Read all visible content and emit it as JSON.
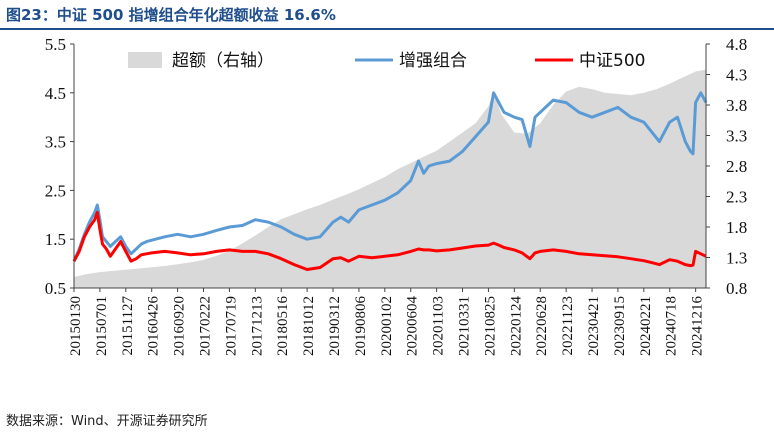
{
  "header": {
    "title": "图23：中证 500 指增组合年化超额收益 16.6%"
  },
  "footer": {
    "source": "数据来源：Wind、开源证券研究所"
  },
  "chart_data": {
    "type": "line",
    "title": "中证 500 指增组合年化超额收益 16.6%",
    "x_ticks": [
      "20150130",
      "20150701",
      "20151127",
      "20160426",
      "20160920",
      "20170222",
      "20170719",
      "20171213",
      "20180516",
      "20181012",
      "20190312",
      "20190806",
      "20200102",
      "20200604",
      "20201103",
      "20210331",
      "20210825",
      "20220124",
      "20220628",
      "20221123",
      "20230421",
      "20230915",
      "20240221",
      "20240718",
      "20241216"
    ],
    "y_left": {
      "ticks": [
        0.5,
        1.5,
        2.5,
        3.5,
        4.5,
        5.5
      ],
      "ylim": [
        0.5,
        5.5
      ]
    },
    "y_right": {
      "ticks": [
        0.8,
        1.3,
        1.8,
        2.3,
        2.8,
        3.3,
        3.8,
        4.3,
        4.8
      ],
      "ylim": [
        0.8,
        4.8
      ]
    },
    "legend": {
      "position": "top",
      "entries": [
        "超额（右轴）",
        "增强组合",
        "中证500"
      ]
    },
    "series": [
      {
        "name": "超额（右轴）",
        "type": "area",
        "axis": "right",
        "color": "#d9d9d9",
        "x": [
          0,
          0.5,
          1,
          1.5,
          2,
          2.5,
          3,
          3.5,
          4,
          4.5,
          5,
          5.5,
          6,
          6.5,
          7,
          7.5,
          8,
          8.5,
          9,
          9.5,
          10,
          10.5,
          11,
          11.5,
          12,
          12.5,
          13,
          13.5,
          14,
          14.5,
          15,
          15.5,
          16,
          16.2,
          16.5,
          17,
          17.5,
          18,
          18.5,
          19,
          19.5,
          20,
          20.5,
          21,
          21.5,
          22,
          22.5,
          23,
          23.5,
          24,
          24.4
        ],
        "values": [
          0.98,
          1.03,
          1.06,
          1.08,
          1.1,
          1.12,
          1.14,
          1.16,
          1.19,
          1.22,
          1.26,
          1.33,
          1.41,
          1.53,
          1.66,
          1.8,
          1.93,
          2.01,
          2.09,
          2.16,
          2.25,
          2.33,
          2.42,
          2.52,
          2.62,
          2.75,
          2.85,
          2.95,
          3.05,
          3.2,
          3.35,
          3.5,
          3.78,
          4.02,
          3.65,
          3.35,
          3.33,
          3.5,
          3.8,
          4.02,
          4.1,
          4.06,
          4.0,
          3.98,
          3.96,
          4.0,
          4.06,
          4.15,
          4.25,
          4.35,
          4.38
        ]
      },
      {
        "name": "增强组合",
        "type": "line",
        "axis": "left",
        "color": "#5b9bd5",
        "x": [
          0,
          0.2,
          0.4,
          0.6,
          0.8,
          0.9,
          1.0,
          1.1,
          1.25,
          1.4,
          1.6,
          1.8,
          2.0,
          2.2,
          2.4,
          2.6,
          2.8,
          3.0,
          3.5,
          4.0,
          4.5,
          5.0,
          5.5,
          6.0,
          6.5,
          7.0,
          7.5,
          8.0,
          8.5,
          9.0,
          9.5,
          10.0,
          10.3,
          10.6,
          11.0,
          11.5,
          12.0,
          12.5,
          13.0,
          13.3,
          13.5,
          13.7,
          14.0,
          14.5,
          15.0,
          15.5,
          16.0,
          16.2,
          16.4,
          16.6,
          17.0,
          17.3,
          17.6,
          17.8,
          18.0,
          18.5,
          19.0,
          19.5,
          20.0,
          20.5,
          21.0,
          21.5,
          22.0,
          22.3,
          22.6,
          23.0,
          23.3,
          23.6,
          23.8,
          23.9,
          24.0,
          24.2,
          24.4
        ],
        "values": [
          1.05,
          1.3,
          1.6,
          1.85,
          2.05,
          2.2,
          1.9,
          1.55,
          1.45,
          1.35,
          1.45,
          1.55,
          1.35,
          1.2,
          1.3,
          1.4,
          1.45,
          1.48,
          1.55,
          1.6,
          1.55,
          1.6,
          1.68,
          1.75,
          1.78,
          1.9,
          1.85,
          1.75,
          1.6,
          1.5,
          1.55,
          1.85,
          1.95,
          1.85,
          2.1,
          2.2,
          2.3,
          2.45,
          2.7,
          3.1,
          2.85,
          3.0,
          3.05,
          3.1,
          3.3,
          3.6,
          3.9,
          4.5,
          4.3,
          4.1,
          4.0,
          3.95,
          3.4,
          4.0,
          4.1,
          4.35,
          4.3,
          4.1,
          4.0,
          4.1,
          4.2,
          4.0,
          3.9,
          3.7,
          3.5,
          3.9,
          4.0,
          3.5,
          3.3,
          3.25,
          4.3,
          4.5,
          4.3
        ]
      },
      {
        "name": "中证500",
        "type": "line",
        "axis": "left",
        "color": "#ff0000",
        "x": [
          0,
          0.2,
          0.4,
          0.6,
          0.8,
          0.9,
          1.0,
          1.1,
          1.25,
          1.4,
          1.6,
          1.8,
          2.0,
          2.2,
          2.4,
          2.6,
          2.8,
          3.0,
          3.5,
          4.0,
          4.5,
          5.0,
          5.5,
          6.0,
          6.5,
          7.0,
          7.5,
          8.0,
          8.5,
          9.0,
          9.5,
          10.0,
          10.3,
          10.6,
          11.0,
          11.5,
          12.0,
          12.5,
          13.0,
          13.3,
          13.5,
          13.7,
          14.0,
          14.5,
          15.0,
          15.5,
          16.0,
          16.2,
          16.4,
          16.6,
          17.0,
          17.3,
          17.6,
          17.8,
          18.0,
          18.5,
          19.0,
          19.5,
          20.0,
          20.5,
          21.0,
          21.5,
          22.0,
          22.3,
          22.6,
          23.0,
          23.3,
          23.6,
          23.8,
          23.9,
          24.0,
          24.2,
          24.4
        ],
        "values": [
          1.05,
          1.25,
          1.55,
          1.75,
          1.9,
          2.05,
          1.7,
          1.4,
          1.3,
          1.15,
          1.3,
          1.45,
          1.25,
          1.05,
          1.1,
          1.18,
          1.2,
          1.22,
          1.25,
          1.22,
          1.18,
          1.2,
          1.25,
          1.28,
          1.25,
          1.25,
          1.2,
          1.1,
          0.98,
          0.88,
          0.92,
          1.1,
          1.12,
          1.05,
          1.15,
          1.12,
          1.15,
          1.18,
          1.25,
          1.3,
          1.28,
          1.28,
          1.26,
          1.28,
          1.32,
          1.36,
          1.38,
          1.42,
          1.38,
          1.33,
          1.28,
          1.22,
          1.1,
          1.22,
          1.25,
          1.28,
          1.25,
          1.2,
          1.18,
          1.16,
          1.14,
          1.1,
          1.06,
          1.02,
          0.98,
          1.08,
          1.05,
          0.98,
          0.96,
          0.97,
          1.25,
          1.2,
          1.15
        ]
      }
    ]
  }
}
